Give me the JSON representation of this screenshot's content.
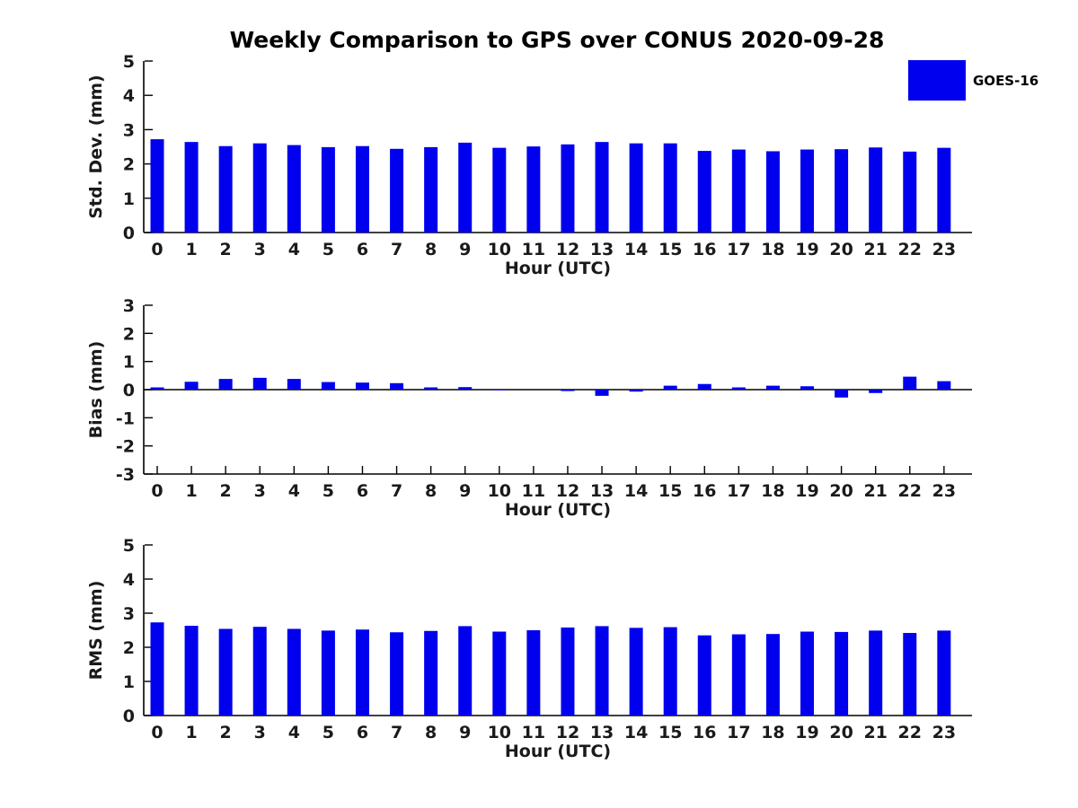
{
  "title": "Weekly Comparison to GPS over CONUS 2020-09-28",
  "legend": {
    "label": "GOES-16",
    "color": "#0000ee",
    "position": "top-right"
  },
  "colors": {
    "bar": "#0000ee",
    "axis": "#000000",
    "text": "#1a1a1a",
    "background": "#ffffff"
  },
  "chart_data": [
    {
      "type": "bar",
      "title": "Weekly Comparison to GPS over CONUS 2020-09-28",
      "series_name": "GOES-16",
      "xlabel": "Hour (UTC)",
      "ylabel": "Std. Dev. (mm)",
      "categories": [
        "0",
        "1",
        "2",
        "3",
        "4",
        "5",
        "6",
        "7",
        "8",
        "9",
        "10",
        "11",
        "12",
        "13",
        "14",
        "15",
        "16",
        "17",
        "18",
        "19",
        "20",
        "21",
        "22",
        "23"
      ],
      "values": [
        2.72,
        2.64,
        2.52,
        2.6,
        2.55,
        2.49,
        2.52,
        2.44,
        2.49,
        2.62,
        2.47,
        2.51,
        2.57,
        2.64,
        2.6,
        2.6,
        2.38,
        2.42,
        2.37,
        2.42,
        2.43,
        2.48,
        2.36,
        2.47
      ],
      "ylim": [
        0,
        5
      ],
      "ytick_step": 1,
      "grid": false
    },
    {
      "type": "bar",
      "title": "",
      "series_name": "GOES-16",
      "xlabel": "Hour (UTC)",
      "ylabel": "Bias (mm)",
      "categories": [
        "0",
        "1",
        "2",
        "3",
        "4",
        "5",
        "6",
        "7",
        "8",
        "9",
        "10",
        "11",
        "12",
        "13",
        "14",
        "15",
        "16",
        "17",
        "18",
        "19",
        "20",
        "21",
        "22",
        "23"
      ],
      "values": [
        0.08,
        0.28,
        0.38,
        0.42,
        0.38,
        0.27,
        0.25,
        0.23,
        0.08,
        0.09,
        -0.02,
        0.0,
        -0.05,
        -0.22,
        -0.07,
        0.14,
        0.2,
        0.08,
        0.14,
        0.12,
        -0.28,
        -0.12,
        0.46,
        0.3
      ],
      "ylim": [
        -3,
        3
      ],
      "ytick_step": 1,
      "grid": false
    },
    {
      "type": "bar",
      "title": "",
      "series_name": "GOES-16",
      "xlabel": "Hour (UTC)",
      "ylabel": "RMS (mm)",
      "categories": [
        "0",
        "1",
        "2",
        "3",
        "4",
        "5",
        "6",
        "7",
        "8",
        "9",
        "10",
        "11",
        "12",
        "13",
        "14",
        "15",
        "16",
        "17",
        "18",
        "19",
        "20",
        "21",
        "22",
        "23"
      ],
      "values": [
        2.73,
        2.63,
        2.54,
        2.6,
        2.54,
        2.49,
        2.52,
        2.44,
        2.48,
        2.62,
        2.46,
        2.5,
        2.58,
        2.62,
        2.57,
        2.59,
        2.35,
        2.38,
        2.39,
        2.46,
        2.45,
        2.49,
        2.42,
        2.49
      ],
      "ylim": [
        0,
        5
      ],
      "ytick_step": 1,
      "grid": false
    }
  ]
}
